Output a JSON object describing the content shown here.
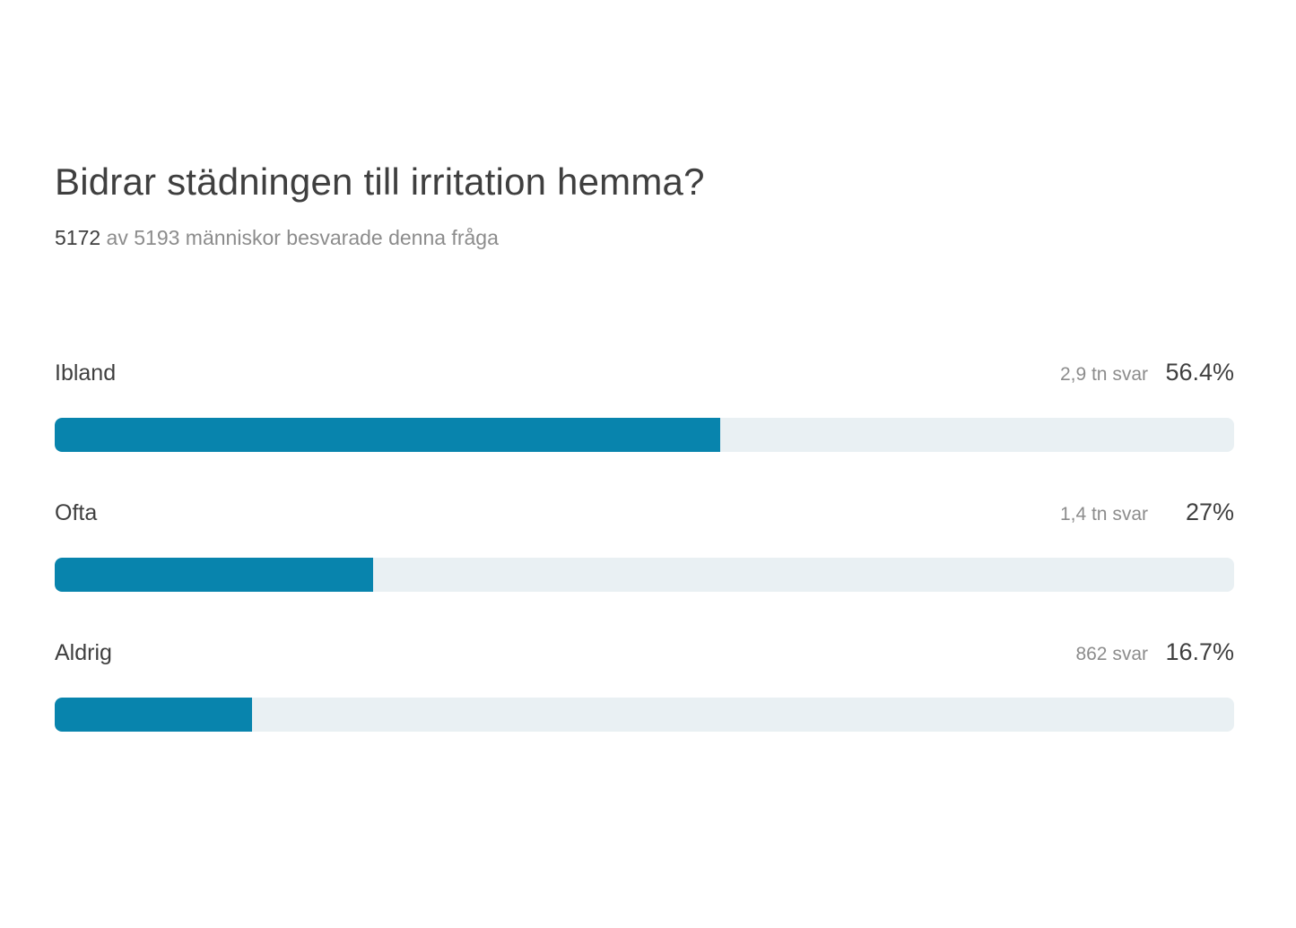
{
  "page": {
    "title": "Bidrar städningen till irritation hemma?",
    "subtitle": {
      "answered": "5172",
      "rest": " av 5193 människor besvarade denna fråga"
    }
  },
  "colors": {
    "bar_fill": "#0884ad",
    "bar_track": "#e9f0f3",
    "text_dark": "#3f3f3f",
    "text_gray": "#8c8c8c"
  },
  "rows": [
    {
      "label": "Ibland",
      "count": "2,9 tn svar",
      "percent": "56.4%",
      "value": 56.4
    },
    {
      "label": "Ofta",
      "count": "1,4 tn svar",
      "percent": "27%",
      "value": 27
    },
    {
      "label": "Aldrig",
      "count": "862 svar",
      "percent": "16.7%",
      "value": 16.7
    }
  ],
  "chart_data": {
    "type": "bar",
    "orientation": "horizontal",
    "title": "Bidrar städningen till irritation hemma?",
    "subtitle": "5172 av 5193 människor besvarade denna fråga",
    "respondents_answered": 5172,
    "respondents_total": 5193,
    "categories": [
      "Ibland",
      "Ofta",
      "Aldrig"
    ],
    "values": [
      56.4,
      27,
      16.7
    ],
    "value_unit": "percent",
    "counts": [
      2900,
      1400,
      862
    ],
    "count_labels": [
      "2,9 tn svar",
      "1,4 tn svar",
      "862 svar"
    ],
    "percent_labels": [
      "56.4%",
      "27%",
      "16.7%"
    ],
    "xlim": [
      0,
      100
    ],
    "grid": false,
    "legend": false,
    "bar_color": "#0884ad",
    "track_color": "#e9f0f3"
  }
}
